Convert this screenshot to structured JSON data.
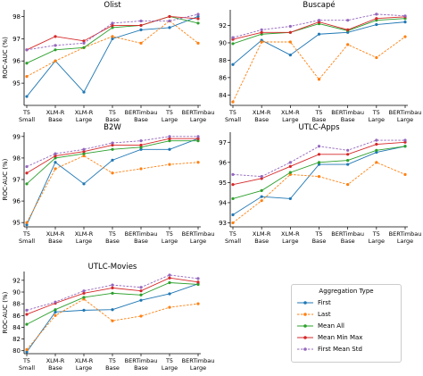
{
  "axis_ylabel": "ROC-AUC (%)",
  "legend": {
    "title": "Aggregation Type",
    "entries": [
      {
        "name": "First",
        "color": "#1f77b4",
        "dash": "solid"
      },
      {
        "name": "Last",
        "color": "#ff7f0e",
        "dash": "dashed"
      },
      {
        "name": "Mean All",
        "color": "#2ca02c",
        "dash": "solid"
      },
      {
        "name": "Mean Min Max",
        "color": "#d62728",
        "dash": "solid"
      },
      {
        "name": "First Mean Std",
        "color": "#9467bd",
        "dash": "dashed"
      }
    ]
  },
  "chart_data": [
    {
      "type": "line",
      "title": "Olist",
      "ylabel": "ROC-AUC (%)",
      "categories": [
        "T5\nSmall",
        "XLM-R\nBase",
        "XLM-R\nLarge",
        "T5\nBase",
        "BERTimbau\nBase",
        "T5\nLarge",
        "BERTimbau\nLarge"
      ],
      "ylim": [
        94.0,
        98.3
      ],
      "yticks": [
        95,
        96,
        97,
        98
      ],
      "series": [
        {
          "name": "First",
          "values": [
            94.4,
            96.0,
            94.6,
            97.0,
            97.4,
            97.5,
            98.0
          ]
        },
        {
          "name": "Last",
          "values": [
            95.3,
            96.0,
            96.6,
            97.1,
            96.8,
            97.8,
            96.8
          ]
        },
        {
          "name": "Mean All",
          "values": [
            95.9,
            96.5,
            96.6,
            97.5,
            97.6,
            98.0,
            97.7
          ]
        },
        {
          "name": "Mean Min Max",
          "values": [
            96.5,
            97.1,
            96.9,
            97.6,
            97.6,
            98.0,
            97.9
          ]
        },
        {
          "name": "First Mean Std",
          "values": [
            96.5,
            96.7,
            96.8,
            97.7,
            97.8,
            97.8,
            98.1
          ]
        }
      ]
    },
    {
      "type": "line",
      "title": "Buscapé",
      "ylabel": "",
      "categories": [
        "T5\nSmall",
        "XLM-R\nBase",
        "XLM-R\nLarge",
        "T5\nBase",
        "BERTimbau\nBase",
        "T5\nLarge",
        "BERTimbau\nLarge"
      ],
      "ylim": [
        82.8,
        93.8
      ],
      "yticks": [
        84,
        86,
        88,
        90,
        92
      ],
      "series": [
        {
          "name": "First",
          "values": [
            87.5,
            90.3,
            88.6,
            91.0,
            91.2,
            92.1,
            92.4
          ]
        },
        {
          "name": "Last",
          "values": [
            83.2,
            90.1,
            90.1,
            85.8,
            89.8,
            88.3,
            90.7
          ]
        },
        {
          "name": "Mean All",
          "values": [
            89.9,
            91.0,
            91.2,
            92.2,
            91.4,
            92.6,
            92.8
          ]
        },
        {
          "name": "Mean Min Max",
          "values": [
            90.4,
            91.2,
            91.2,
            92.4,
            91.5,
            92.8,
            93.0
          ]
        },
        {
          "name": "First Mean Std",
          "values": [
            90.6,
            91.5,
            91.9,
            92.6,
            92.6,
            93.3,
            93.1
          ]
        }
      ]
    },
    {
      "type": "line",
      "title": "B2W",
      "ylabel": "ROC-AUC (%)",
      "categories": [
        "T5\nSmall",
        "XLM-R\nBase",
        "XLM-R\nLarge",
        "T5\nBase",
        "BERTimbau\nBase",
        "T5\nLarge",
        "BERTimbau\nLarge"
      ],
      "ylim": [
        94.8,
        99.2
      ],
      "yticks": [
        95,
        96,
        97,
        98,
        99
      ],
      "series": [
        {
          "name": "First",
          "values": [
            94.9,
            97.8,
            96.8,
            97.9,
            98.4,
            98.4,
            98.9
          ]
        },
        {
          "name": "Last",
          "values": [
            95.0,
            97.5,
            98.1,
            97.3,
            97.5,
            97.7,
            97.8
          ]
        },
        {
          "name": "Mean All",
          "values": [
            96.8,
            98.0,
            98.2,
            98.4,
            98.5,
            98.8,
            98.8
          ]
        },
        {
          "name": "Mean Min Max",
          "values": [
            97.3,
            98.1,
            98.3,
            98.6,
            98.6,
            98.9,
            98.9
          ]
        },
        {
          "name": "First Mean Std",
          "values": [
            97.6,
            98.2,
            98.4,
            98.7,
            98.8,
            99.0,
            99.0
          ]
        }
      ]
    },
    {
      "type": "line",
      "title": "UTLC-Apps",
      "ylabel": "",
      "categories": [
        "T5\nSmall",
        "XLM-R\nBase",
        "XLM-R\nLarge",
        "T5\nBase",
        "BERTimbau\nBase",
        "T5\nLarge",
        "BERTimbau\nLarge"
      ],
      "ylim": [
        92.8,
        97.5
      ],
      "yticks": [
        93,
        94,
        95,
        96,
        97
      ],
      "series": [
        {
          "name": "First",
          "values": [
            93.4,
            94.3,
            94.2,
            95.9,
            95.9,
            96.5,
            96.8
          ]
        },
        {
          "name": "Last",
          "values": [
            93.0,
            94.1,
            95.4,
            95.3,
            94.9,
            96.0,
            95.4
          ]
        },
        {
          "name": "Mean All",
          "values": [
            94.2,
            94.6,
            95.5,
            96.0,
            96.1,
            96.6,
            96.8
          ]
        },
        {
          "name": "Mean Min Max",
          "values": [
            94.9,
            95.2,
            95.8,
            96.4,
            96.4,
            96.9,
            97.0
          ]
        },
        {
          "name": "First Mean Std",
          "values": [
            95.4,
            95.3,
            96.0,
            96.8,
            96.6,
            97.1,
            97.1
          ]
        }
      ]
    },
    {
      "type": "line",
      "title": "UTLC-Movies",
      "ylabel": "ROC-AUC (%)",
      "categories": [
        "T5\nSmall",
        "XLM-R\nBase",
        "XLM-R\nLarge",
        "T5\nBase",
        "BERTimbau\nBase",
        "T5\nLarge",
        "BERTimbau\nLarge"
      ],
      "ylim": [
        79.5,
        93.5
      ],
      "yticks": [
        80,
        82,
        84,
        86,
        88,
        90,
        92
      ],
      "series": [
        {
          "name": "First",
          "values": [
            79.8,
            86.6,
            86.9,
            87.0,
            88.6,
            89.7,
            91.4
          ]
        },
        {
          "name": "Last",
          "values": [
            80.2,
            86.0,
            88.8,
            85.1,
            85.9,
            87.4,
            88.0
          ]
        },
        {
          "name": "Mean All",
          "values": [
            84.5,
            87.0,
            89.1,
            89.8,
            89.5,
            91.6,
            91.3
          ]
        },
        {
          "name": "Mean Min Max",
          "values": [
            86.2,
            88.1,
            89.8,
            90.7,
            90.2,
            92.4,
            91.7
          ]
        },
        {
          "name": "First Mean Std",
          "values": [
            86.9,
            88.3,
            90.2,
            91.2,
            90.8,
            92.9,
            92.3
          ]
        }
      ]
    }
  ]
}
